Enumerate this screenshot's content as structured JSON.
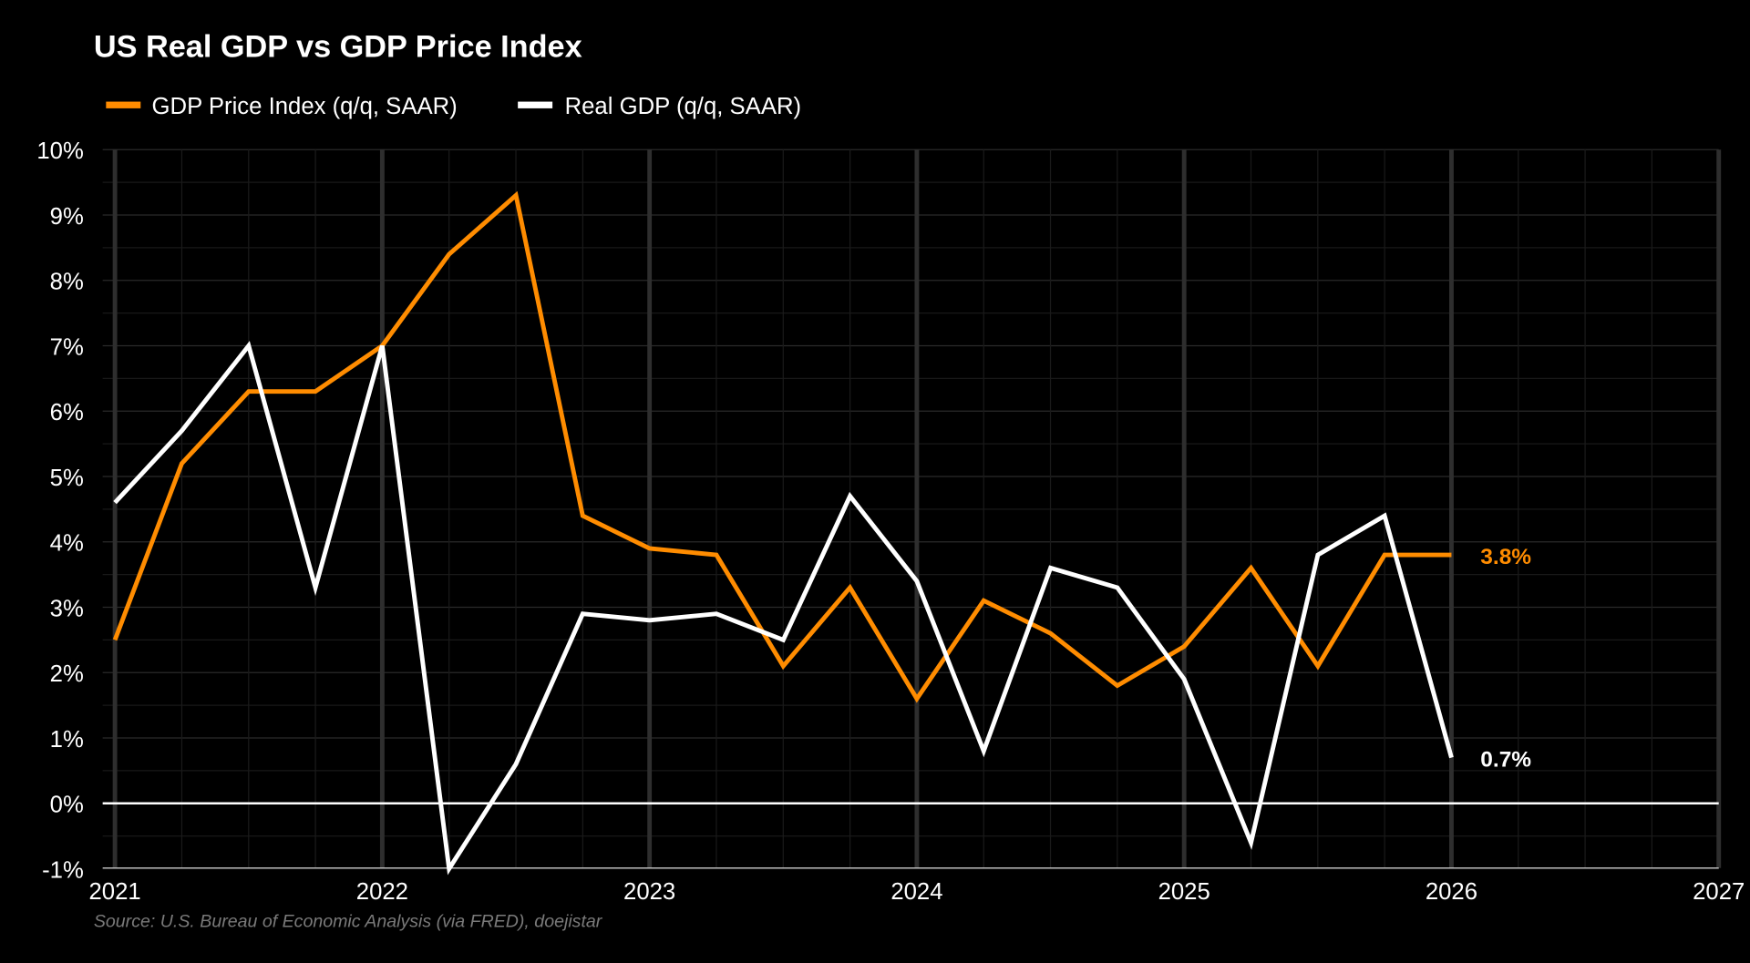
{
  "chart_data": {
    "type": "line",
    "title": "US Real GDP vs GDP Price Index",
    "source": "Source: U.S. Bureau of Economic Analysis (via FRED), doejistar",
    "xlabel": "",
    "ylabel": "",
    "xlim": [
      2020.955,
      2027
    ],
    "ylim": [
      -1,
      10
    ],
    "grid": true,
    "legend_position": "top-left",
    "x_ticks": [
      "2021",
      "2022",
      "2023",
      "2024",
      "2025",
      "2026",
      "2027"
    ],
    "y_ticks": [
      "-1%",
      "0%",
      "1%",
      "2%",
      "3%",
      "4%",
      "5%",
      "6%",
      "7%",
      "8%",
      "9%",
      "10%"
    ],
    "x": [
      2021.0,
      2021.25,
      2021.5,
      2021.75,
      2022.0,
      2022.25,
      2022.5,
      2022.75,
      2023.0,
      2023.25,
      2023.5,
      2023.75,
      2024.0,
      2024.25,
      2024.5,
      2024.75,
      2025.0,
      2025.25,
      2025.5,
      2025.75,
      2026.0
    ],
    "series": [
      {
        "name": "GDP Price Index (q/q, SAAR)",
        "color": "#ff8c00",
        "values": [
          2.5,
          5.2,
          6.3,
          6.3,
          7.0,
          8.4,
          9.3,
          4.4,
          3.9,
          3.8,
          2.1,
          3.3,
          1.6,
          3.1,
          2.6,
          1.8,
          2.4,
          3.6,
          2.1,
          3.8,
          3.8
        ],
        "end_label": "3.8%"
      },
      {
        "name": "Real GDP (q/q, SAAR)",
        "color": "#ffffff",
        "values": [
          4.6,
          5.7,
          7.0,
          3.3,
          7.0,
          -1.0,
          0.6,
          2.9,
          2.8,
          2.9,
          2.5,
          4.7,
          3.4,
          0.8,
          3.6,
          3.3,
          1.9,
          -0.6,
          3.8,
          4.4,
          0.7
        ],
        "end_label": "0.7%"
      }
    ]
  }
}
